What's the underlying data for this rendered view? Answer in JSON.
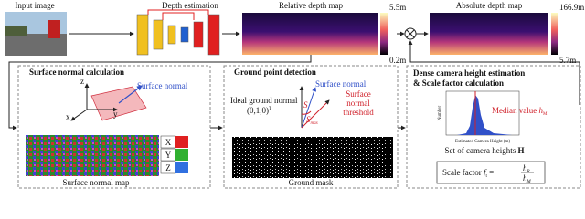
{
  "top": {
    "input_label": "Input image",
    "depth_label": "Depth estimation",
    "relative": {
      "label": "Relative depth map",
      "max": "5.5m",
      "min": "0.2m"
    },
    "absolute": {
      "label": "Absolute depth map",
      "max": "166.9m",
      "min": "5.7m"
    }
  },
  "normal_panel": {
    "title": "Surface normal calculation",
    "axis_z": "z",
    "axis_y": "y",
    "axis_x": "x",
    "normal_label": "Surface normal",
    "map_label": "Surface normal map",
    "legend": [
      "X",
      "Y",
      "Z"
    ]
  },
  "ground_panel": {
    "title": "Ground point detection",
    "normal_label": "Surface normal",
    "ideal_label": "Ideal ground normal",
    "ideal_vector": "(0,1,0)",
    "ideal_sup": "T",
    "s": "S",
    "smax": "S",
    "smax_sub": "max",
    "threshold_1": "Surface",
    "threshold_2": "normal",
    "threshold_3": "threshold",
    "mask_label": "Ground mask"
  },
  "height_panel": {
    "title_1": "Dense camera height estimation",
    "title_2": "& Scale factor calculation",
    "y_label": "Number",
    "x_label": "Estimated Camera Height (m)",
    "median": "Median value",
    "median_h": "h",
    "median_sub": "M",
    "set_label": "Set of camera heights",
    "set_symbol": "H",
    "scale_label": "Scale factor",
    "scale_f": "f",
    "scale_f_sub": "t",
    "scale_eq": "=",
    "num_h": "h",
    "num_sub": "R",
    "den_h": "h",
    "den_sub": "M"
  }
}
